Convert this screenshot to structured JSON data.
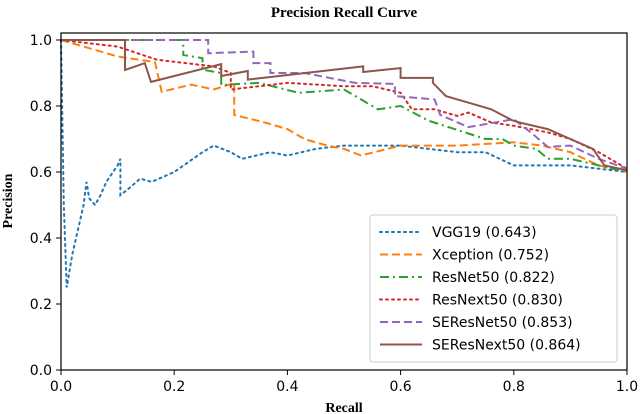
{
  "chart_data": {
    "type": "line",
    "title": "Precision Recall Curve",
    "xlabel": "Recall",
    "ylabel": "Precision",
    "xlim": [
      0,
      1
    ],
    "ylim": [
      0,
      1.02
    ],
    "xticks": [
      "0.0",
      "0.2",
      "0.4",
      "0.6",
      "0.8",
      "1.0"
    ],
    "yticks": [
      "0.0",
      "0.2",
      "0.4",
      "0.6",
      "0.8",
      "1.0"
    ],
    "grid": false,
    "legend_position": "lower-right",
    "series": [
      {
        "name": "VGG19 (0.643)",
        "color": "#1f77b4",
        "dash": "dotted",
        "points": [
          [
            0,
            1
          ],
          [
            0.005,
            0.5
          ],
          [
            0.01,
            0.25
          ],
          [
            0.02,
            0.35
          ],
          [
            0.04,
            0.5
          ],
          [
            0.045,
            0.57
          ],
          [
            0.05,
            0.52
          ],
          [
            0.06,
            0.5
          ],
          [
            0.07,
            0.53
          ],
          [
            0.08,
            0.57
          ],
          [
            0.1,
            0.62
          ],
          [
            0.105,
            0.64
          ],
          [
            0.105,
            0.53
          ],
          [
            0.12,
            0.55
          ],
          [
            0.14,
            0.58
          ],
          [
            0.16,
            0.57
          ],
          [
            0.2,
            0.6
          ],
          [
            0.25,
            0.66
          ],
          [
            0.27,
            0.68
          ],
          [
            0.3,
            0.66
          ],
          [
            0.32,
            0.64
          ],
          [
            0.37,
            0.66
          ],
          [
            0.4,
            0.65
          ],
          [
            0.45,
            0.67
          ],
          [
            0.5,
            0.68
          ],
          [
            0.52,
            0.68
          ],
          [
            0.6,
            0.68
          ],
          [
            0.7,
            0.66
          ],
          [
            0.75,
            0.66
          ],
          [
            0.8,
            0.62
          ],
          [
            0.9,
            0.62
          ],
          [
            1,
            0.6
          ]
        ]
      },
      {
        "name": "Xception (0.752)",
        "color": "#ff7f0e",
        "dash": "dashed",
        "points": [
          [
            0,
            1
          ],
          [
            0.1,
            0.95
          ],
          [
            0.166,
            0.933
          ],
          [
            0.178,
            0.843
          ],
          [
            0.23,
            0.865
          ],
          [
            0.27,
            0.85
          ],
          [
            0.306,
            0.87
          ],
          [
            0.306,
            0.773
          ],
          [
            0.36,
            0.75
          ],
          [
            0.4,
            0.73
          ],
          [
            0.43,
            0.7
          ],
          [
            0.47,
            0.68
          ],
          [
            0.5,
            0.67
          ],
          [
            0.53,
            0.65
          ],
          [
            0.6,
            0.68
          ],
          [
            0.7,
            0.68
          ],
          [
            0.8,
            0.69
          ],
          [
            0.85,
            0.68
          ],
          [
            0.9,
            0.66
          ],
          [
            0.95,
            0.62
          ],
          [
            1,
            0.6
          ]
        ]
      },
      {
        "name": "ResNet50 (0.822)",
        "color": "#2ca02c",
        "dash": "dashdot",
        "points": [
          [
            0,
            1
          ],
          [
            0.216,
            1
          ],
          [
            0.216,
            0.955
          ],
          [
            0.25,
            0.945
          ],
          [
            0.25,
            0.91
          ],
          [
            0.283,
            0.9
          ],
          [
            0.283,
            0.864
          ],
          [
            0.35,
            0.87
          ],
          [
            0.42,
            0.84
          ],
          [
            0.5,
            0.85
          ],
          [
            0.53,
            0.82
          ],
          [
            0.56,
            0.79
          ],
          [
            0.6,
            0.8
          ],
          [
            0.65,
            0.755
          ],
          [
            0.75,
            0.7
          ],
          [
            0.78,
            0.7
          ],
          [
            0.8,
            0.68
          ],
          [
            0.84,
            0.67
          ],
          [
            0.86,
            0.64
          ],
          [
            0.9,
            0.64
          ],
          [
            0.95,
            0.62
          ],
          [
            1,
            0.6
          ]
        ]
      },
      {
        "name": "ResNext50 (0.830)",
        "color": "#d62728",
        "dash": "dotted",
        "points": [
          [
            0,
            1
          ],
          [
            0.1,
            0.98
          ],
          [
            0.17,
            0.94
          ],
          [
            0.27,
            0.92
          ],
          [
            0.3,
            0.9
          ],
          [
            0.3,
            0.85
          ],
          [
            0.4,
            0.87
          ],
          [
            0.5,
            0.86
          ],
          [
            0.55,
            0.86
          ],
          [
            0.6,
            0.84
          ],
          [
            0.62,
            0.79
          ],
          [
            0.66,
            0.79
          ],
          [
            0.7,
            0.77
          ],
          [
            0.72,
            0.78
          ],
          [
            0.76,
            0.75
          ],
          [
            0.8,
            0.74
          ],
          [
            0.86,
            0.72
          ],
          [
            0.9,
            0.7
          ],
          [
            0.95,
            0.66
          ],
          [
            1,
            0.61
          ]
        ]
      },
      {
        "name": "SEResNet50 (0.853)",
        "color": "#9467bd",
        "dash": "dashed",
        "points": [
          [
            0,
            1
          ],
          [
            0.26,
            1
          ],
          [
            0.26,
            0.96
          ],
          [
            0.34,
            0.965
          ],
          [
            0.34,
            0.93
          ],
          [
            0.37,
            0.93
          ],
          [
            0.37,
            0.9
          ],
          [
            0.43,
            0.9
          ],
          [
            0.52,
            0.87
          ],
          [
            0.59,
            0.867
          ],
          [
            0.59,
            0.83
          ],
          [
            0.66,
            0.82
          ],
          [
            0.67,
            0.773
          ],
          [
            0.72,
            0.736
          ],
          [
            0.8,
            0.76
          ],
          [
            0.83,
            0.72
          ],
          [
            0.86,
            0.676
          ],
          [
            0.9,
            0.68
          ],
          [
            0.95,
            0.64
          ],
          [
            1,
            0.61
          ]
        ]
      },
      {
        "name": "SEResNext50 (0.864)",
        "color": "#8c564b",
        "dash": "solid",
        "points": [
          [
            0,
            1
          ],
          [
            0.113,
            1
          ],
          [
            0.113,
            0.909
          ],
          [
            0.148,
            0.93
          ],
          [
            0.159,
            0.873
          ],
          [
            0.283,
            0.927
          ],
          [
            0.283,
            0.891
          ],
          [
            0.33,
            0.906
          ],
          [
            0.33,
            0.88
          ],
          [
            0.534,
            0.92
          ],
          [
            0.534,
            0.903
          ],
          [
            0.6,
            0.915
          ],
          [
            0.6,
            0.885
          ],
          [
            0.657,
            0.885
          ],
          [
            0.657,
            0.87
          ],
          [
            0.68,
            0.83
          ],
          [
            0.72,
            0.81
          ],
          [
            0.76,
            0.79
          ],
          [
            0.797,
            0.757
          ],
          [
            0.81,
            0.75
          ],
          [
            0.86,
            0.73
          ],
          [
            0.9,
            0.7
          ],
          [
            0.94,
            0.67
          ],
          [
            0.96,
            0.62
          ],
          [
            1,
            0.605
          ]
        ]
      }
    ]
  }
}
